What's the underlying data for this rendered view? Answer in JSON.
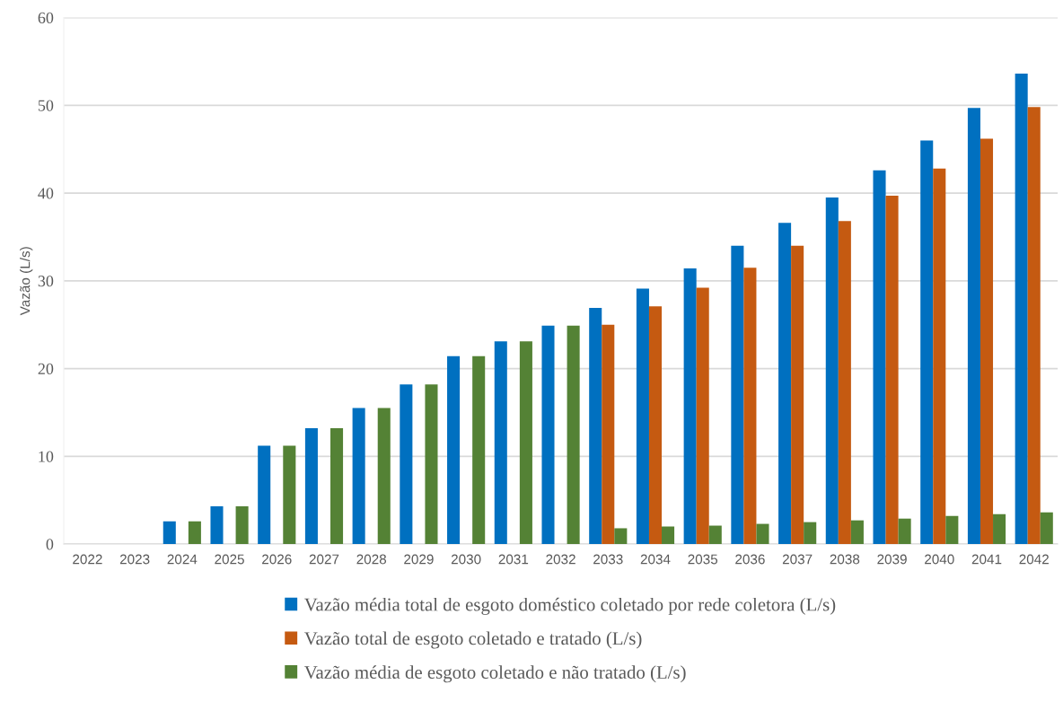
{
  "chart_data": {
    "type": "bar",
    "ylabel": "Vazão (L/s)",
    "categories": [
      "2022",
      "2023",
      "2024",
      "2025",
      "2026",
      "2027",
      "2028",
      "2029",
      "2030",
      "2031",
      "2032",
      "2033",
      "2034",
      "2035",
      "2036",
      "2037",
      "2038",
      "2039",
      "2040",
      "2041",
      "2042"
    ],
    "series": [
      {
        "name": "Vazão média total de esgoto doméstico coletado por rede coletora (L/s)",
        "color": "#0070c0",
        "values": [
          0,
          0,
          2.6,
          4.3,
          11.2,
          13.2,
          15.5,
          18.2,
          21.4,
          23.1,
          24.9,
          26.9,
          29.1,
          31.4,
          34.0,
          36.6,
          39.5,
          42.6,
          46.0,
          49.7,
          53.6
        ]
      },
      {
        "name": "Vazão total de esgoto coletado e tratado (L/s)",
        "color": "#c55a11",
        "values": [
          0,
          0,
          0,
          0,
          0,
          0,
          0,
          0,
          0,
          0,
          0,
          25.0,
          27.1,
          29.2,
          31.5,
          34.0,
          36.8,
          39.7,
          42.8,
          46.2,
          49.8
        ]
      },
      {
        "name": "Vazão média de esgoto coletado e não tratado (L/s)",
        "color": "#548235",
        "values": [
          0,
          0,
          2.6,
          4.3,
          11.2,
          13.2,
          15.5,
          18.2,
          21.4,
          23.1,
          24.9,
          1.8,
          2.0,
          2.1,
          2.3,
          2.5,
          2.7,
          2.9,
          3.2,
          3.4,
          3.6
        ]
      }
    ],
    "ylim": [
      0,
      60
    ],
    "yticks": [
      0,
      10,
      20,
      30,
      40,
      50,
      60
    ],
    "grid": "y",
    "legend": "bottom"
  }
}
